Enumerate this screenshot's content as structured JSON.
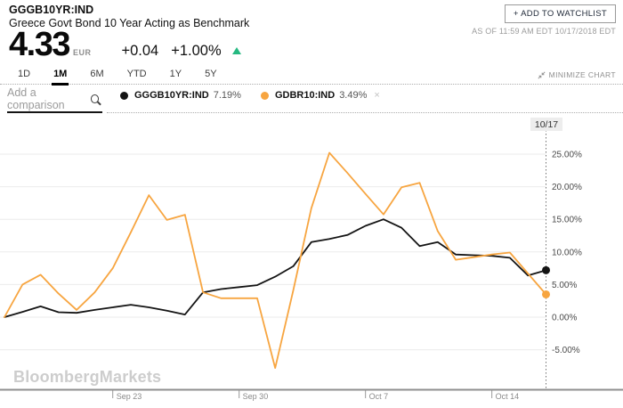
{
  "header": {
    "ticker": "GGGB10YR:IND",
    "name": "Greece Govt Bond 10 Year Acting as Benchmark",
    "price": "4.33",
    "currency": "EUR",
    "change": "+0.04",
    "change_pct": "+1.00%",
    "change_direction": "up",
    "change_color": "#26b981",
    "watchlist_button": "+ ADD TO WATCHLIST",
    "as_of": "AS OF 11:59 AM EDT 10/17/2018 EDT"
  },
  "range_tabs": [
    {
      "label": "1D",
      "active": false
    },
    {
      "label": "1M",
      "active": true
    },
    {
      "label": "6M",
      "active": false
    },
    {
      "label": "YTD",
      "active": false
    },
    {
      "label": "1Y",
      "active": false
    },
    {
      "label": "5Y",
      "active": false
    }
  ],
  "minimize_chart_label": "MINIMIZE CHART",
  "comparison": {
    "placeholder": "Add a comparison"
  },
  "legend": [
    {
      "name": "GGGB10YR:IND",
      "value": "7.19%",
      "color": "#141414",
      "removable": false
    },
    {
      "name": "GDBR10:IND",
      "value": "3.49%",
      "color": "#f7a540",
      "removable": true
    }
  ],
  "watermark": "BloombergMarkets",
  "chart_data": {
    "type": "line",
    "x": [
      "Sep 17",
      "Sep 18",
      "Sep 19",
      "Sep 20",
      "Sep 21",
      "Sep 22",
      "Sep 23",
      "Sep 24",
      "Sep 25",
      "Sep 26",
      "Sep 27",
      "Sep 28",
      "Sep 29",
      "Sep 30",
      "Oct 1",
      "Oct 2",
      "Oct 3",
      "Oct 4",
      "Oct 5",
      "Oct 6",
      "Oct 7",
      "Oct 8",
      "Oct 9",
      "Oct 10",
      "Oct 11",
      "Oct 12",
      "Oct 13",
      "Oct 14",
      "Oct 15",
      "Oct 16",
      "Oct 17"
    ],
    "series": [
      {
        "name": "GGGB10YR:IND",
        "color": "#141414",
        "values": [
          0.0,
          0.8,
          1.65,
          0.75,
          0.65,
          1.1,
          1.5,
          1.9,
          1.5,
          1.0,
          0.4,
          3.8,
          4.3,
          4.6,
          4.9,
          6.2,
          7.8,
          11.5,
          12.0,
          12.6,
          14.0,
          15.0,
          13.7,
          10.9,
          11.5,
          9.6,
          9.5,
          9.4,
          9.1,
          6.4,
          7.19
        ]
      },
      {
        "name": "GDBR10:IND",
        "color": "#f7a540",
        "values": [
          0.0,
          5.0,
          6.5,
          3.6,
          1.1,
          3.8,
          7.5,
          13.0,
          18.7,
          14.9,
          15.7,
          3.8,
          2.9,
          2.9,
          2.9,
          -7.8,
          4.1,
          16.7,
          25.2,
          22.1,
          18.9,
          15.75,
          19.9,
          20.6,
          13.2,
          8.8,
          9.2,
          9.6,
          9.9,
          6.7,
          3.49
        ]
      }
    ],
    "x_tick_labels": [
      {
        "label": "Sep 23",
        "index": 6
      },
      {
        "label": "Sep 30",
        "index": 13
      },
      {
        "label": "Oct 7",
        "index": 20
      },
      {
        "label": "Oct 14",
        "index": 27
      }
    ],
    "y_ticks": [
      {
        "label": "25.00%",
        "value": 25
      },
      {
        "label": "20.00%",
        "value": 20
      },
      {
        "label": "15.00%",
        "value": 15
      },
      {
        "label": "10.00%",
        "value": 10
      },
      {
        "label": "5.00%",
        "value": 5
      },
      {
        "label": "0.00%",
        "value": 0
      },
      {
        "label": "-5.00%",
        "value": -5
      }
    ],
    "ylim": [
      -11,
      28
    ],
    "unit": "%",
    "grid": "horizontal",
    "legend_position": "top",
    "cursor_label": "10/17",
    "end_markers": true
  }
}
